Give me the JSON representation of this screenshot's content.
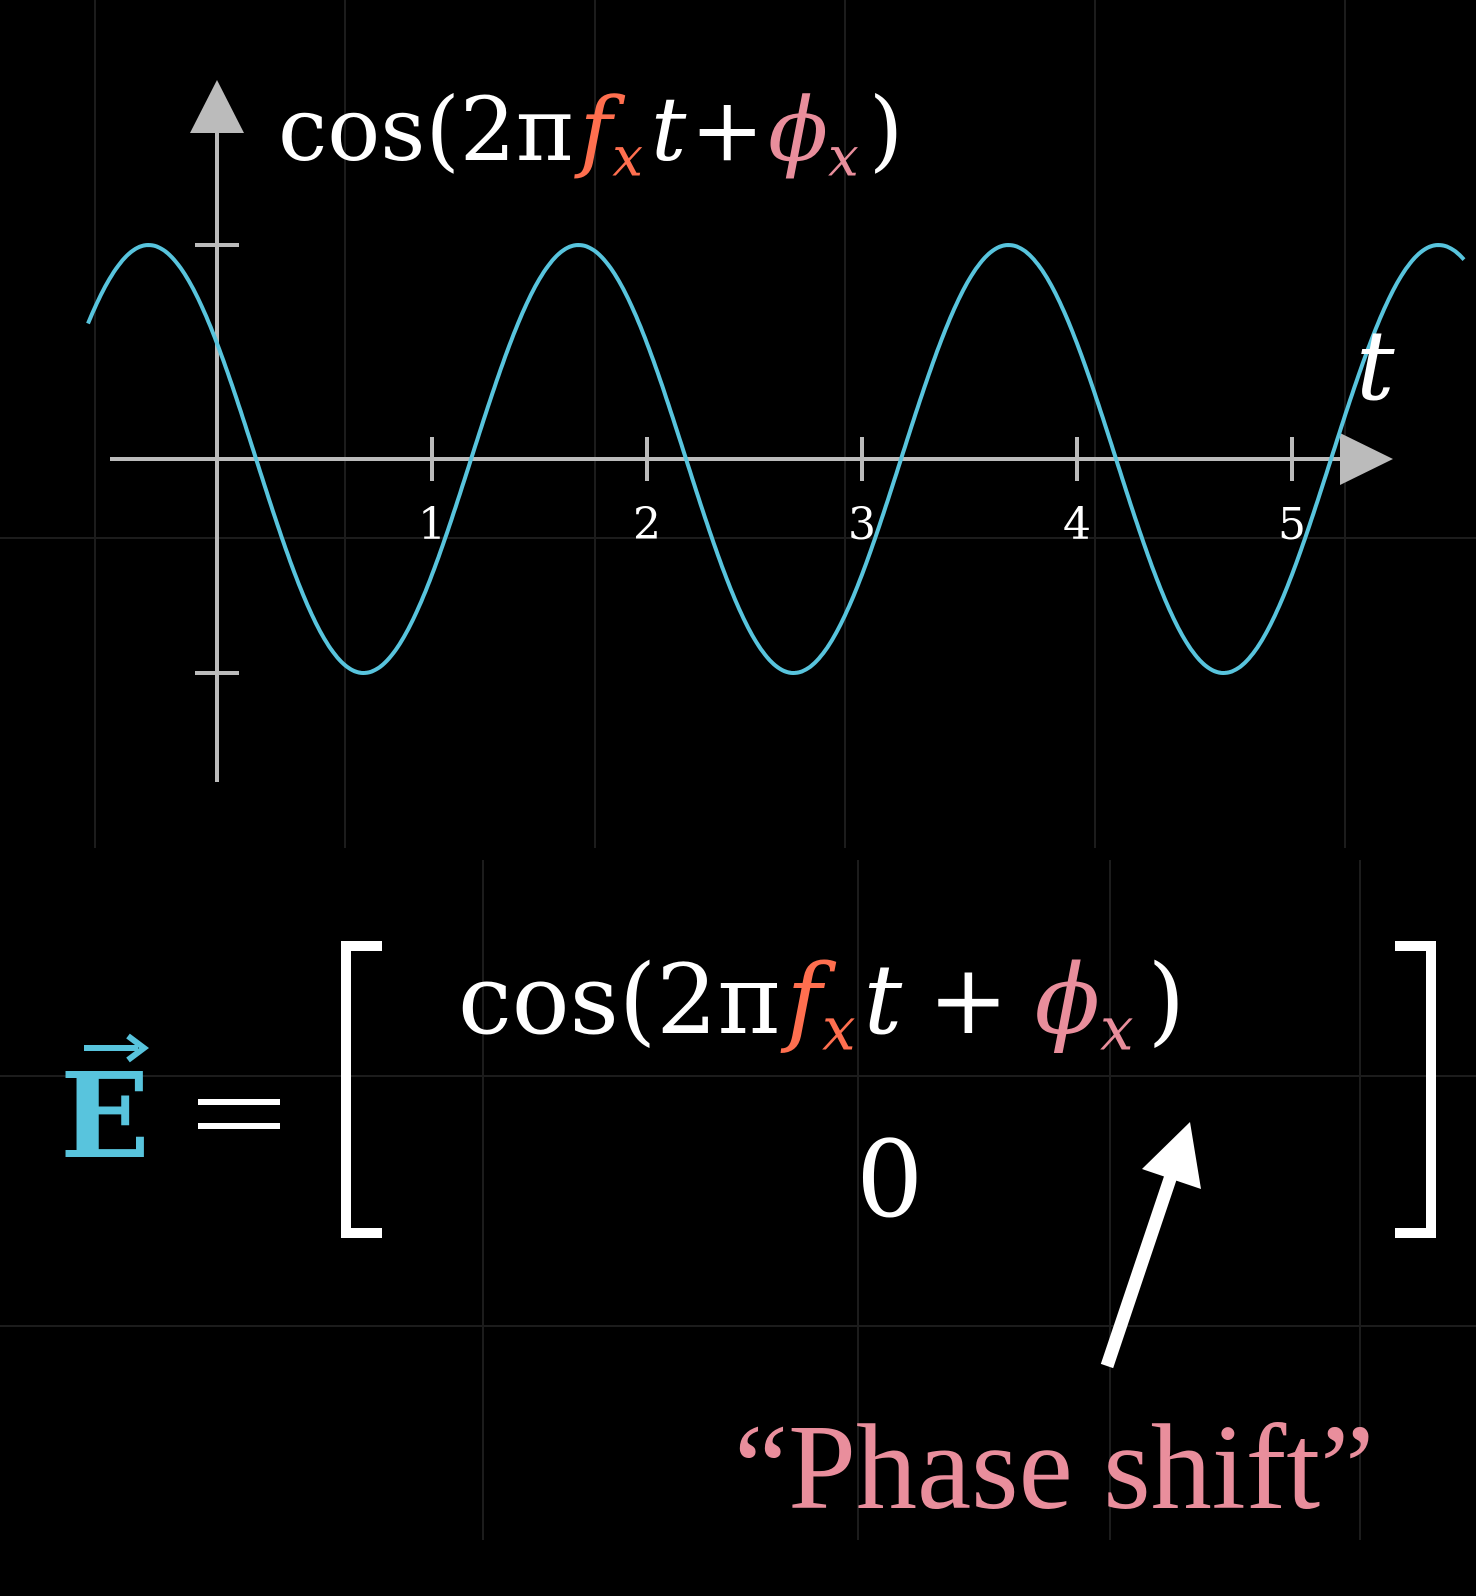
{
  "colors": {
    "background": "#000000",
    "axis": "#bbbbbb",
    "wave": "#58c4dd",
    "frequency": "#ff6f4f",
    "phase": "#e98e9c",
    "vector": "#58c4dd",
    "text": "#ffffff"
  },
  "plot": {
    "formula": {
      "func": "cos",
      "open": "(",
      "two_pi": "2π",
      "f": "f",
      "f_sub": "x",
      "t": "t",
      "plus": "+",
      "phi": "ϕ",
      "phi_sub": "x",
      "close": ")"
    },
    "t_axis_label": "t"
  },
  "chart_data": {
    "type": "line",
    "function": "cos(2π·f·t + φ)",
    "xlim": [
      -0.6,
      5.8
    ],
    "ylim": [
      -1,
      1
    ],
    "x_ticks": [
      1,
      2,
      3,
      4,
      5
    ],
    "x_tick_labels": [
      "1",
      "2",
      "3",
      "4",
      "5"
    ],
    "y_ticks": [
      -1,
      1
    ],
    "series": [
      {
        "frequency": 0.5,
        "phase": 1.0,
        "color": "#58c4dd"
      }
    ]
  },
  "equation": {
    "lhs": "E",
    "equals": "=",
    "row1": {
      "func": "cos",
      "open": "(",
      "two_pi": "2π",
      "f": "f",
      "f_sub": "x",
      "t": "t",
      "plus": "+",
      "phi": "ϕ",
      "phi_sub": "x",
      "close": ")"
    },
    "row2": "0"
  },
  "annotation": {
    "label": "“Phase shift”"
  }
}
